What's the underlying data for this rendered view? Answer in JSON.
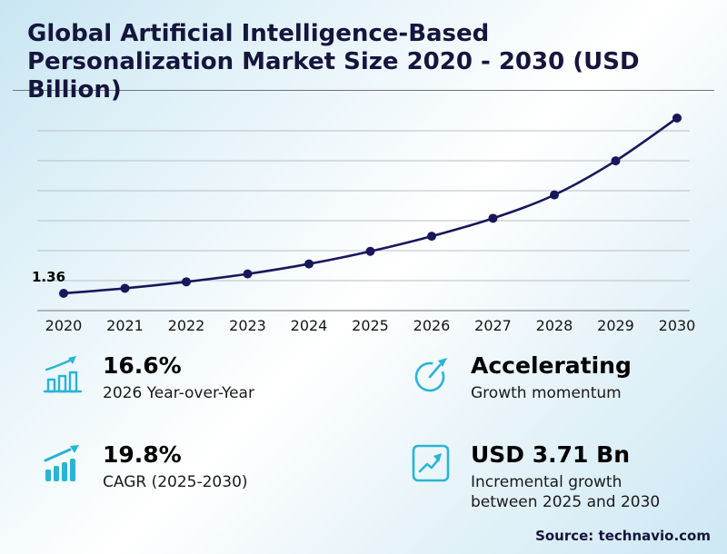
{
  "title": {
    "line1": "Global Artificial Intelligence-Based",
    "line2": "Personalization Market Size 2020 - 2030 (USD",
    "line3": "Billion)"
  },
  "chart_data": {
    "type": "line",
    "x": [
      2020,
      2021,
      2022,
      2023,
      2024,
      2025,
      2026,
      2027,
      2028,
      2029,
      2030
    ],
    "values": [
      1.36,
      1.5,
      1.68,
      1.9,
      2.18,
      2.53,
      2.95,
      3.45,
      4.1,
      5.05,
      6.24
    ],
    "first_point_label": "1.36",
    "title": "Global Artificial Intelligence-Based Personalization Market Size 2020 - 2030 (USD Billion)",
    "xlabel": "",
    "ylabel": "",
    "ylim": [
      1.2,
      6.6
    ],
    "grid": true,
    "legend": false,
    "line_color": "#17175c"
  },
  "stats": [
    {
      "icon": "bar-chart-growth-icon",
      "value": "16.6%",
      "label": "2026 Year-over-Year"
    },
    {
      "icon": "gauge-icon",
      "value": "Accelerating",
      "label": "Growth momentum"
    },
    {
      "icon": "bars-up-arrow-icon",
      "value": "19.8%",
      "label": "CAGR (2025-2030)"
    },
    {
      "icon": "chart-box-icon",
      "value": "USD 3.71 Bn",
      "label": "Incremental growth between 2025 and 2030"
    }
  ],
  "source": "Source: technavio.com",
  "colors": {
    "accent": "#29b4d6",
    "line": "#17175c",
    "grid": "#b9bfc4",
    "axis": "#8a8f94",
    "title": "#15153d"
  }
}
